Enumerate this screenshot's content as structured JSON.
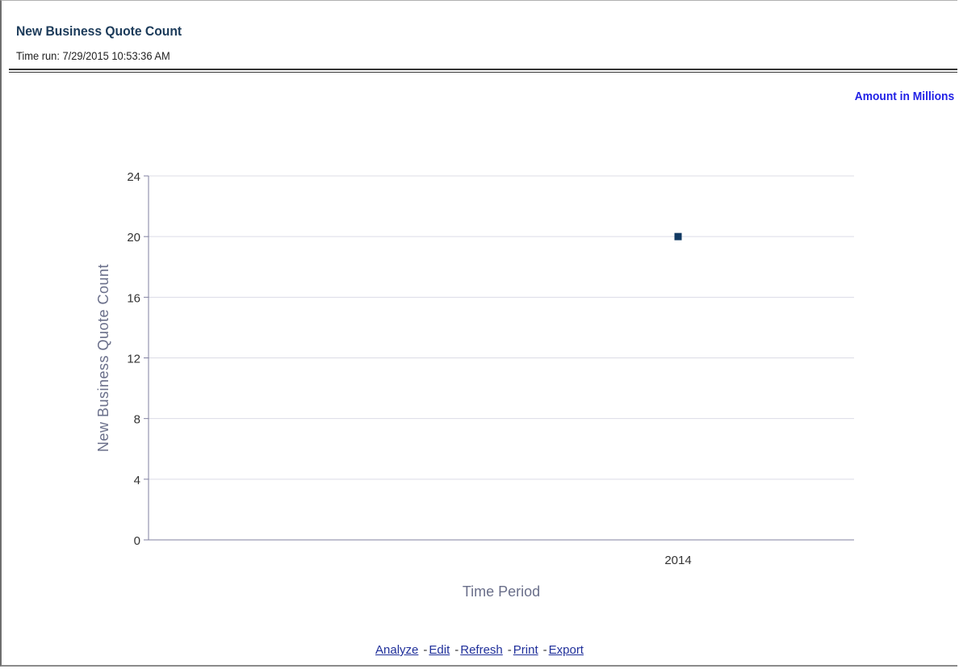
{
  "report": {
    "title": "New Business Quote Count",
    "time_run": "Time run: 7/29/2015 10:53:36 AM",
    "amount_note": "Amount in Millions"
  },
  "links": [
    {
      "label": "Analyze"
    },
    {
      "label": "Edit"
    },
    {
      "label": "Refresh"
    },
    {
      "label": "Print"
    },
    {
      "label": "Export"
    }
  ],
  "colors": {
    "marker": "#123a63",
    "gridline": "#dcdce6",
    "axis": "#8080a0",
    "axis_title": "#6a6f8a"
  },
  "chart_data": {
    "type": "scatter",
    "title": "",
    "xlabel": "Time Period",
    "ylabel": "New Business Quote Count",
    "categories": [
      "2014"
    ],
    "series": [
      {
        "values": [
          20
        ]
      }
    ],
    "ylim": [
      0,
      24
    ],
    "yticks": [
      0,
      4,
      8,
      12,
      16,
      20,
      24
    ],
    "grid": true,
    "legend": "none"
  }
}
